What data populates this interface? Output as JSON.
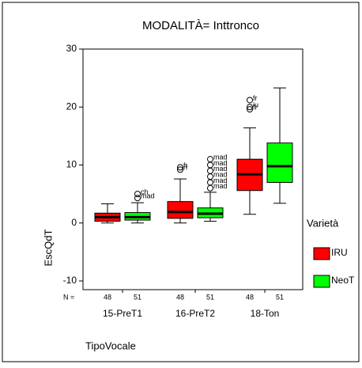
{
  "chart_data": {
    "type": "box",
    "title": "MODALITÀ= Inttronco",
    "x_label": "TipoVocale",
    "y_label": "EscQdT",
    "n_label": "N =",
    "legend_title": "Varietà",
    "categories": [
      "15-PreT1",
      "16-PreT2",
      "18-Ton"
    ],
    "ylim": [
      -11.5,
      30
    ],
    "yticks": [
      -10,
      0,
      10,
      20,
      30
    ],
    "series": [
      {
        "name": "IRU",
        "color": "#ff0000",
        "n": [
          48,
          48,
          48
        ],
        "stats": [
          {
            "min": 0,
            "q1": 0.3,
            "median": 1,
            "q3": 1.7,
            "max": 3.3,
            "outliers": [],
            "outlier_labels": []
          },
          {
            "min": 0,
            "q1": 0.8,
            "median": 1.9,
            "q3": 3.7,
            "max": 7.6,
            "outliers": [
              9.2,
              9.6
            ],
            "outlier_labels": [
              "rr",
              "fr"
            ]
          },
          {
            "min": 1.5,
            "q1": 5.6,
            "median": 8.4,
            "q3": 11,
            "max": 16.4,
            "outliers": [
              19.6,
              20,
              21.2
            ],
            "outlier_labels": [
              "fr",
              "iu",
              "fr"
            ]
          }
        ]
      },
      {
        "name": "NeoT",
        "color": "#00ff00",
        "n": [
          51,
          51,
          51
        ],
        "stats": [
          {
            "min": 0,
            "q1": 0.5,
            "median": 1,
            "q3": 1.8,
            "max": 3.5,
            "outliers": [
              4.3,
              5
            ],
            "outlier_labels": [
              "mad",
              "ch"
            ]
          },
          {
            "min": 0.3,
            "q1": 0.9,
            "median": 1.6,
            "q3": 2.6,
            "max": 5.3,
            "outliers": [
              6,
              7,
              8,
              9,
              10,
              11
            ],
            "outlier_labels": [
              "mad",
              "mad",
              "mad",
              "mad",
              "mad",
              "mad"
            ]
          },
          {
            "min": 3.4,
            "q1": 7,
            "median": 9.8,
            "q3": 13.8,
            "max": 23.3,
            "outliers": [],
            "outlier_labels": []
          }
        ]
      }
    ]
  }
}
